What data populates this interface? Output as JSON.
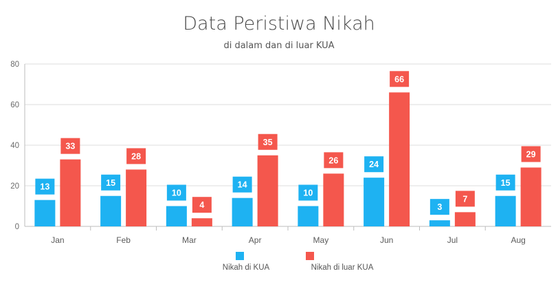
{
  "chart_data": {
    "type": "bar",
    "title": "Data Peristiwa Nikah",
    "subtitle": "di dalam dan di luar KUA",
    "categories": [
      "Jan",
      "Feb",
      "Mar",
      "Apr",
      "May",
      "Jun",
      "Jul",
      "Aug"
    ],
    "series": [
      {
        "name": "Nikah di KUA",
        "values": [
          13,
          15,
          10,
          14,
          10,
          24,
          3,
          15
        ],
        "color": "#1eb2f2"
      },
      {
        "name": "Nikah di luar KUA",
        "values": [
          33,
          28,
          4,
          35,
          26,
          66,
          7,
          29
        ],
        "color": "#f4574d"
      }
    ],
    "ylim": [
      0,
      80
    ],
    "yticks": [
      0,
      20,
      40,
      60,
      80
    ],
    "grid": true,
    "data_labels": true,
    "legend_position": "bottom-center"
  }
}
